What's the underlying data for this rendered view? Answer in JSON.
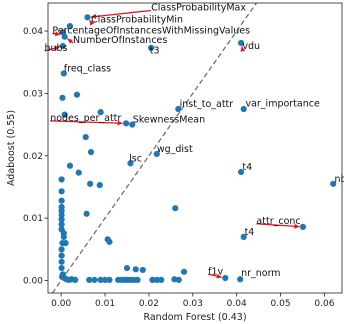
{
  "chart_data": {
    "type": "scatter",
    "xlabel": "Random Forest (0.43)",
    "ylabel": "Adaboost (0.55)",
    "xlim": [
      -0.003,
      0.064
    ],
    "ylim": [
      -0.002,
      0.0445
    ],
    "xticks": [
      0.0,
      0.01,
      0.02,
      0.03,
      0.04,
      0.05,
      0.06
    ],
    "xtick_labels": [
      "0.00",
      "0.01",
      "0.02",
      "0.03",
      "0.04",
      "0.05",
      "0.06"
    ],
    "yticks": [
      0.0,
      0.01,
      0.02,
      0.03,
      0.04
    ],
    "ytick_labels": [
      "0.00",
      "0.01",
      "0.02",
      "0.03",
      "0.04"
    ],
    "diagonal": true,
    "point_color": "#1f77b4",
    "arrow_color": "#e8101e",
    "points": [
      [
        0.006,
        0.0422
      ],
      [
        0.002,
        0.0408
      ],
      [
        0.0004,
        0.0398
      ],
      [
        0.0008,
        0.0391
      ],
      [
        0.0004,
        0.0376
      ],
      [
        0.0205,
        0.0373
      ],
      [
        0.041,
        0.0381
      ],
      [
        0.0006,
        0.0332
      ],
      [
        0.0036,
        0.0298
      ],
      [
        0.0003,
        0.0293
      ],
      [
        0.0008,
        0.0266
      ],
      [
        0.009,
        0.027
      ],
      [
        0.0267,
        0.0275
      ],
      [
        0.0416,
        0.0275
      ],
      [
        0.0148,
        0.0252
      ],
      [
        0.0162,
        0.025
      ],
      [
        0.0056,
        0.023
      ],
      [
        0.0068,
        0.0206
      ],
      [
        0.0218,
        0.0203
      ],
      [
        0.0158,
        0.0188
      ],
      [
        0.002,
        0.0184
      ],
      [
        0.004,
        0.0173
      ],
      [
        0.041,
        0.0174
      ],
      [
        0.0001,
        0.0162
      ],
      [
        0.0066,
        0.0155
      ],
      [
        0.0088,
        0.0153
      ],
      [
        0.0001,
        0.0143
      ],
      [
        0.062,
        0.0155
      ],
      [
        0.0001,
        0.0128
      ],
      [
        0.0001,
        0.0118
      ],
      [
        0.0001,
        0.0112
      ],
      [
        0.0001,
        0.0105
      ],
      [
        0.0058,
        0.0107
      ],
      [
        0.026,
        0.0116
      ],
      [
        0.0001,
        0.0098
      ],
      [
        0.0001,
        0.009
      ],
      [
        0.0001,
        0.0082
      ],
      [
        0.0006,
        0.0076
      ],
      [
        0.0006,
        0.007
      ],
      [
        0.0416,
        0.007
      ],
      [
        0.0551,
        0.0086
      ],
      [
        0.0106,
        0.0066
      ],
      [
        0.011,
        0.0062
      ],
      [
        0.0003,
        0.006
      ],
      [
        0.001,
        0.006
      ],
      [
        0.0001,
        0.005
      ],
      [
        0.0001,
        0.004
      ],
      [
        0.0001,
        0.003
      ],
      [
        0.015,
        0.002
      ],
      [
        0.017,
        0.0018
      ],
      [
        0.0186,
        0.0017
      ],
      [
        0.0001,
        0.002
      ],
      [
        0.0004,
        0.001
      ],
      [
        0.028,
        0.0014
      ],
      [
        0.0002,
        0.0006
      ],
      [
        0.0007,
        0.0004
      ],
      [
        0.0012,
        0.0002
      ],
      [
        0.0018,
        0.0001
      ],
      [
        0.0024,
        0.0002
      ],
      [
        0.0032,
        0.0001
      ],
      [
        0.0064,
        0.0001
      ],
      [
        0.0076,
        0.0001
      ],
      [
        0.009,
        0.0001
      ],
      [
        0.01,
        0.0001
      ],
      [
        0.011,
        0.0001
      ],
      [
        0.013,
        0.0001
      ],
      [
        0.0138,
        0.0001
      ],
      [
        0.0146,
        0.0001
      ],
      [
        0.0152,
        0.0001
      ],
      [
        0.0158,
        0.0001
      ],
      [
        0.0166,
        0.0001
      ],
      [
        0.0174,
        0.0001
      ],
      [
        0.0208,
        0.0001
      ],
      [
        0.0218,
        0.0001
      ],
      [
        0.0228,
        0.0001
      ],
      [
        0.0258,
        0.0002
      ],
      [
        0.0268,
        0.0001
      ],
      [
        0.0374,
        0.0004
      ],
      [
        0.0408,
        0.0002
      ]
    ],
    "annotations": [
      {
        "text": "ClassProbabilityMax",
        "point": [
          0.006,
          0.0422
        ],
        "label_pos": [
          0.0205,
          0.0433
        ],
        "anchor": "start"
      },
      {
        "text": "ClassProbabilityMin",
        "point": [
          0.006,
          0.0422
        ],
        "label_pos": [
          0.0068,
          0.0414
        ],
        "anchor": "start"
      },
      {
        "text": "PercentageOfInstancesWithMissingValues",
        "point": [
          0.0006,
          0.0394
        ],
        "label_pos": [
          -0.002,
          0.0396
        ],
        "anchor": "start"
      },
      {
        "text": "NumberOfInstances",
        "point": [
          0.0008,
          0.0391
        ],
        "label_pos": [
          0.0027,
          0.0381
        ],
        "anchor": "start"
      },
      {
        "text": "hubs",
        "point": [
          0.0004,
          0.0376
        ],
        "label_pos": [
          -0.0038,
          0.0368
        ],
        "anchor": "start"
      },
      {
        "text": "t3",
        "point": [
          0.0205,
          0.0373
        ],
        "label_pos": [
          0.0202,
          0.0364
        ],
        "anchor": "start"
      },
      {
        "text": "vdu",
        "point": [
          0.041,
          0.0381
        ],
        "label_pos": [
          0.0413,
          0.0371
        ],
        "anchor": "start"
      },
      {
        "text": "freq_class",
        "point": [
          0.0006,
          0.0332
        ],
        "label_pos": [
          0.0006,
          0.0335
        ],
        "anchor": "start"
      },
      {
        "text": "inst_to_attr",
        "point": [
          0.0267,
          0.0275
        ],
        "label_pos": [
          0.027,
          0.0278
        ],
        "anchor": "start"
      },
      {
        "text": "var_importance",
        "point": [
          0.0416,
          0.0275
        ],
        "label_pos": [
          0.042,
          0.0279
        ],
        "anchor": "start"
      },
      {
        "text": "nodes_per_attr",
        "point": [
          0.0148,
          0.0252
        ],
        "label_pos": [
          -0.0025,
          0.0256
        ],
        "anchor": "start"
      },
      {
        "text": "SkewnessMean",
        "point": [
          0.0162,
          0.025
        ],
        "label_pos": [
          0.0163,
          0.0253
        ],
        "anchor": "start"
      },
      {
        "text": "wg_dist",
        "point": [
          0.0218,
          0.0203
        ],
        "label_pos": [
          0.0218,
          0.0206
        ],
        "anchor": "start"
      },
      {
        "text": "lsc",
        "point": [
          0.0158,
          0.0188
        ],
        "label_pos": [
          0.0155,
          0.0191
        ],
        "anchor": "start"
      },
      {
        "text": "t4",
        "point": [
          0.041,
          0.0174
        ],
        "label_pos": [
          0.0413,
          0.0177
        ],
        "anchor": "start"
      },
      {
        "text": "nb",
        "point": [
          0.062,
          0.0155
        ],
        "label_pos": [
          0.0623,
          0.0158
        ],
        "anchor": "start"
      },
      {
        "text": "attr_conc",
        "point": [
          0.0551,
          0.0086
        ],
        "label_pos": [
          0.0445,
          0.0091
        ],
        "anchor": "start"
      },
      {
        "text": "t4",
        "point": [
          0.0416,
          0.007
        ],
        "label_pos": [
          0.0418,
          0.0073
        ],
        "anchor": "start"
      },
      {
        "text": "f1v",
        "point": [
          0.0374,
          0.0004
        ],
        "label_pos": [
          0.0335,
          0.001
        ],
        "anchor": "start"
      },
      {
        "text": "nr_norm",
        "point": [
          0.0408,
          0.0002
        ],
        "label_pos": [
          0.041,
          0.0007
        ],
        "anchor": "start"
      }
    ]
  }
}
